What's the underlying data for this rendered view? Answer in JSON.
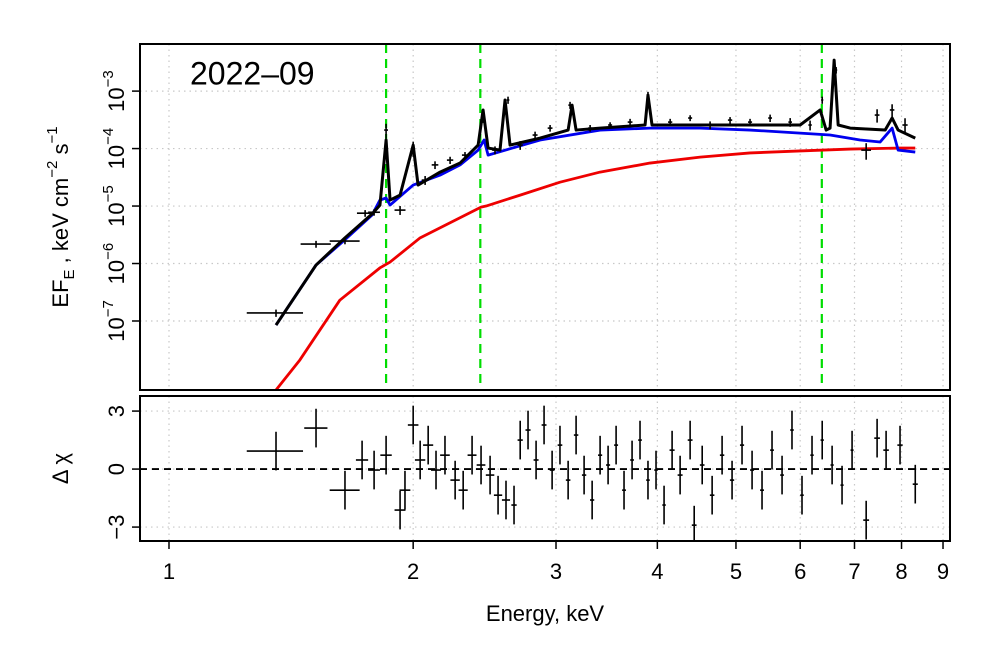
{
  "chart_data": [
    {
      "type": "errorbar",
      "annotation": "2022–09",
      "ylabel": "EF_E , keV cm^−2 s^−1",
      "xlog": true,
      "ylog": true,
      "grid": true,
      "xlim": [
        0.921,
        9.18
      ],
      "xticks": [
        1,
        2,
        3,
        4,
        5,
        6,
        7,
        8,
        9
      ],
      "ylim": [
        6.3e-09,
        0.0066
      ],
      "yticks": [
        {
          "value": 1e-07,
          "label": "10^−7"
        },
        {
          "value": 1e-06,
          "label": "10^−6"
        },
        {
          "value": 1e-05,
          "label": "10^−5"
        },
        {
          "value": 0.0001,
          "label": "10^−4"
        },
        {
          "value": 0.001,
          "label": "10^−3"
        }
      ],
      "vlines": {
        "color": "#00dd00",
        "x": [
          1.852,
          2.42,
          6.38
        ]
      },
      "series": [
        {
          "color": "#ee0000",
          "x": [
            1.355,
            1.45,
            1.624,
            1.82,
            1.873,
            2.04,
            2.425,
            2.46,
            2.71,
            3.034,
            3.4,
            3.918,
            4.516,
            5.204,
            5.999,
            6.915,
            7.966,
            8.318
          ],
          "y": [
            6.3e-09,
            2.1e-08,
            2.3e-07,
            8.4e-07,
            1.06e-06,
            2.8e-06,
            9.6e-06,
            1e-05,
            1.55e-05,
            2.6e-05,
            3.9e-05,
            5.6e-05,
            7.1e-05,
            8.4e-05,
            9.1e-05,
            9.8e-05,
            0.000102,
            0.000102
          ]
        },
        {
          "color": "#0000ee",
          "x": [
            1.355,
            1.518,
            1.648,
            1.78,
            1.82,
            1.852,
            1.873,
            2.0,
            2.159,
            2.285,
            2.405,
            2.446,
            2.474,
            2.868,
            3.4,
            3.918,
            4.516,
            5.204,
            5.999,
            6.531,
            7.112,
            7.527,
            7.789,
            7.923,
            8.318
          ],
          "y": [
            8.5e-08,
            9.4e-07,
            2.6e-06,
            7e-06,
            1.27e-05,
            1.38e-05,
            1.04e-05,
            2.32e-05,
            3.46e-05,
            5.2e-05,
            9.4e-05,
            0.000141,
            7.7e-05,
            0.000141,
            0.00021,
            0.000227,
            0.000227,
            0.00021,
            0.000186,
            0.000172,
            0.000141,
            0.00013,
            0.000227,
            9.4e-05,
            8.7e-05
          ]
        },
        {
          "color": "#000000",
          "x": [
            1.355,
            1.518,
            1.648,
            1.78,
            1.82,
            1.852,
            1.873,
            1.927,
            2.0,
            2.028,
            2.159,
            2.285,
            2.405,
            2.439,
            2.474,
            2.559,
            2.596,
            2.633,
            2.868,
            3.105,
            3.14,
            3.176,
            3.4,
            3.863,
            3.895,
            3.94,
            4.516,
            5.204,
            5.999,
            6.35,
            6.459,
            6.531,
            6.607,
            6.683,
            6.915,
            7.636,
            7.789,
            7.923,
            8.318
          ],
          "y": [
            8.5e-08,
            9.4e-07,
            2.8e-06,
            7.3e-06,
            1.04e-05,
            0.000141,
            1.27e-05,
            1.55e-05,
            0.000115,
            2.32e-05,
            3.9e-05,
            5.6e-05,
            0.000115,
            0.00047,
            0.000102,
            9.4e-05,
            0.0007,
            0.000115,
            0.000152,
            0.00021,
            0.00057,
            0.00021,
            0.000227,
            0.000257,
            0.00085,
            0.000257,
            0.000257,
            0.000257,
            0.000257,
            0.00047,
            0.00021,
            0.000227,
            0.00346,
            0.000257,
            0.000227,
            0.00021,
            0.00034,
            0.00021,
            0.000152
          ]
        }
      ],
      "points": {
        "color": "#000000",
        "x": [
          1.355,
          1.518,
          1.648,
          1.745,
          1.79,
          1.852,
          1.927,
          2.0,
          2.069,
          2.128,
          2.221,
          2.317,
          2.439,
          2.523,
          2.618,
          2.71,
          2.827,
          2.95,
          3.122,
          3.305,
          3.498,
          3.702,
          3.895,
          4.148,
          4.39,
          4.646,
          4.917,
          5.204,
          5.509,
          5.832,
          6.171,
          6.387,
          6.645,
          7.236,
          7.464,
          7.789,
          8.08
        ],
        "y": [
          1.38e-07,
          2.18e-06,
          2.46e-06,
          7.5e-06,
          7.8e-06,
          0.00021,
          8.5e-06,
          0.000102,
          2.83e-05,
          5.2e-05,
          6.3e-05,
          7.7e-05,
          0.00034,
          9.4e-05,
          0.0007,
          0.000115,
          0.000172,
          0.000227,
          0.00057,
          0.000227,
          0.000257,
          0.000289,
          0.00085,
          0.000289,
          0.00034,
          0.000257,
          0.000313,
          0.000289,
          0.00034,
          0.000289,
          0.000257,
          0.0007,
          0.00232,
          9.4e-05,
          0.000383,
          0.00047,
          0.000257
        ],
        "xerr": [
          0.108,
          0.065,
          0.07,
          0.04,
          0.03,
          0.01,
          0.03,
          0.01,
          0.02,
          0.02,
          0.02,
          0.02,
          0.01,
          0.02,
          0.01,
          0.02,
          0.02,
          0.02,
          0.015,
          0.02,
          0.02,
          0.025,
          0.015,
          0.025,
          0.025,
          0.03,
          0.03,
          0.03,
          0.03,
          0.03,
          0.03,
          0.02,
          0.02,
          0.1,
          0.05,
          0.05,
          0.06
        ],
        "yerr": [
          2e-08,
          3e-07,
          3e-07,
          1e-06,
          1e-06,
          6e-05,
          1.5e-06,
          3e-05,
          5e-06,
          8e-06,
          9e-06,
          1e-05,
          6e-05,
          1.5e-05,
          0.0001,
          2e-05,
          2.5e-05,
          3e-05,
          8e-05,
          3e-05,
          3e-05,
          4e-05,
          0.00012,
          4e-05,
          4e-05,
          4e-05,
          4e-05,
          4e-05,
          5e-05,
          5e-05,
          5e-05,
          0.0001,
          0.0003,
          3e-05,
          0.0001,
          0.00012,
          8e-05
        ]
      }
    },
    {
      "type": "errorbar",
      "ylabel": "Δ χ",
      "xlabel": "Energy, keV",
      "xlog": true,
      "ylog": false,
      "grid": true,
      "xlim": [
        0.921,
        9.18
      ],
      "xticks": [
        1,
        2,
        3,
        4,
        5,
        6,
        7,
        8,
        9
      ],
      "ylim": [
        -3.72,
        3.78
      ],
      "yticks": [
        {
          "value": -3,
          "label": "−3"
        },
        0,
        3
      ],
      "hline": 0,
      "points": {
        "color": "#000000",
        "x": [
          1.355,
          1.518,
          1.648,
          1.73,
          1.79,
          1.852,
          1.927,
          1.954,
          2.0,
          2.04,
          2.087,
          2.134,
          2.189,
          2.253,
          2.305,
          2.364,
          2.425,
          2.488,
          2.545,
          2.603,
          2.663,
          2.71,
          2.771,
          2.835,
          2.9,
          2.967,
          3.034,
          3.105,
          3.176,
          3.249,
          3.324,
          3.4,
          3.478,
          3.558,
          3.639,
          3.723,
          3.808,
          3.895,
          3.985,
          4.077,
          4.171,
          4.267,
          4.39,
          4.441,
          4.543,
          4.673,
          4.807,
          4.945,
          5.087,
          5.234,
          5.384,
          5.539,
          5.699,
          5.862,
          6.031,
          6.205,
          6.387,
          6.569,
          6.757,
          6.952,
          7.236,
          7.464,
          7.657,
          7.966,
          8.318
        ],
        "y": [
          0.93,
          2.12,
          -1.09,
          0.47,
          -0.05,
          0.72,
          -2.12,
          -1.09,
          2.28,
          0.47,
          1.24,
          -0.05,
          0.72,
          -0.57,
          -1.09,
          0.72,
          0.21,
          -0.31,
          -1.35,
          -1.6,
          -1.86,
          1.5,
          2.02,
          0.47,
          2.28,
          -0.05,
          1.24,
          -0.57,
          1.76,
          -0.31,
          -1.6,
          0.72,
          0.21,
          1.24,
          -1.09,
          0.47,
          1.5,
          -0.57,
          -0.05,
          -1.86,
          0.98,
          -0.31,
          1.5,
          -2.9,
          0.21,
          -1.35,
          0.72,
          -0.57,
          1.24,
          -0.05,
          -1.09,
          0.98,
          -0.31,
          2.02,
          -1.35,
          0.72,
          1.5,
          0.21,
          -0.83,
          0.98,
          -2.64,
          1.6,
          0.98,
          1.24,
          -0.78
        ],
        "xerr": [
          0.108,
          0.05,
          0.07,
          0.03,
          0.03,
          0.03,
          0.03,
          0.03,
          0.03,
          0.03,
          0.03,
          0.03,
          0.03,
          0.03,
          0.03,
          0.03,
          0.03,
          0.03,
          0.03,
          0.03,
          0.02,
          0.02,
          0.02,
          0.02,
          0.02,
          0.02,
          0.02,
          0.02,
          0.02,
          0.02,
          0.02,
          0.02,
          0.02,
          0.02,
          0.02,
          0.02,
          0.02,
          0.02,
          0.02,
          0.02,
          0.03,
          0.03,
          0.03,
          0.03,
          0.03,
          0.03,
          0.03,
          0.03,
          0.03,
          0.03,
          0.03,
          0.03,
          0.03,
          0.03,
          0.03,
          0.03,
          0.03,
          0.03,
          0.03,
          0.03,
          0.06,
          0.06,
          0.06,
          0.06,
          0.06
        ],
        "yerr": [
          1,
          1,
          1,
          1,
          1,
          1,
          1,
          1,
          1,
          1,
          1,
          1,
          1,
          1,
          1,
          1,
          1,
          1,
          1,
          1,
          1,
          1,
          1,
          1,
          1,
          1,
          1,
          1,
          1,
          1,
          1,
          1,
          1,
          1,
          1,
          1,
          1,
          1,
          1,
          1,
          1,
          1,
          1,
          1,
          1,
          1,
          1,
          1,
          1,
          1,
          1,
          1,
          1,
          1,
          1,
          1,
          1,
          1,
          1,
          1,
          1,
          1,
          1,
          1,
          1
        ]
      }
    }
  ]
}
